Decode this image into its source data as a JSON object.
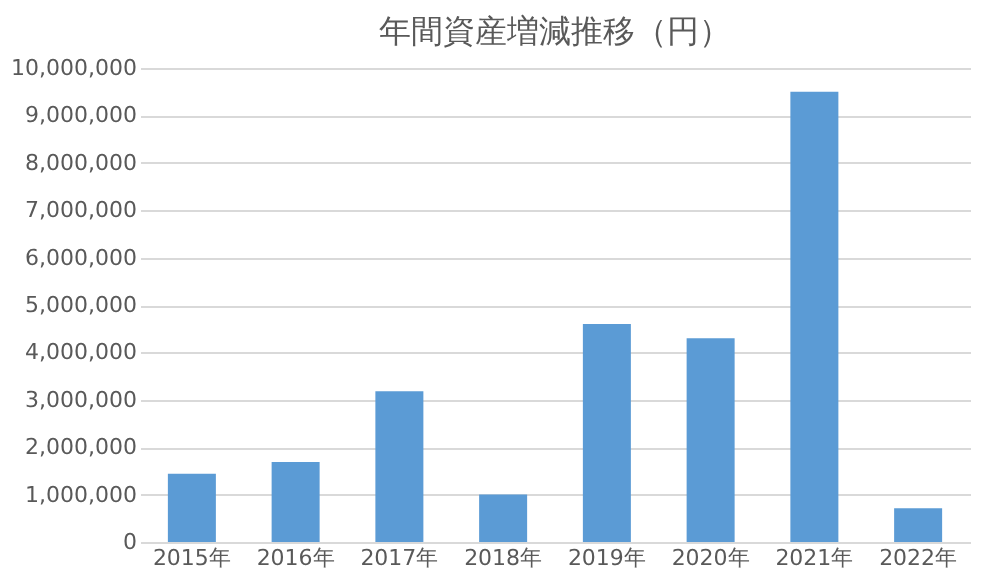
{
  "chart_data": {
    "type": "bar",
    "title": "年間資産増減推移（円）",
    "categories": [
      "2015年",
      "2016年",
      "2017年",
      "2018年",
      "2019年",
      "2020年",
      "2021年",
      "2022年"
    ],
    "values": [
      1440000,
      1690000,
      3180000,
      1000000,
      4600000,
      4300000,
      9500000,
      710000
    ],
    "color": "#5b9bd5",
    "ylim": [
      0,
      10000000
    ],
    "yticks": [
      0,
      {
        "value": 1000000,
        "label": "1,000,000"
      },
      {
        "value": 2000000,
        "label": "2,000,000"
      },
      {
        "value": 3000000,
        "label": "3,000,000"
      },
      {
        "value": 4000000,
        "label": "4,000,000"
      },
      {
        "value": 5000000,
        "label": "5,000,000"
      },
      {
        "value": 6000000,
        "label": "6,000,000"
      },
      {
        "value": 7000000,
        "label": "7,000,000"
      },
      {
        "value": 8000000,
        "label": "8,000,000"
      },
      {
        "value": 9000000,
        "label": "9,000,000"
      },
      {
        "value": 10000000,
        "label": "10,000,000"
      }
    ],
    "grid": "y"
  }
}
